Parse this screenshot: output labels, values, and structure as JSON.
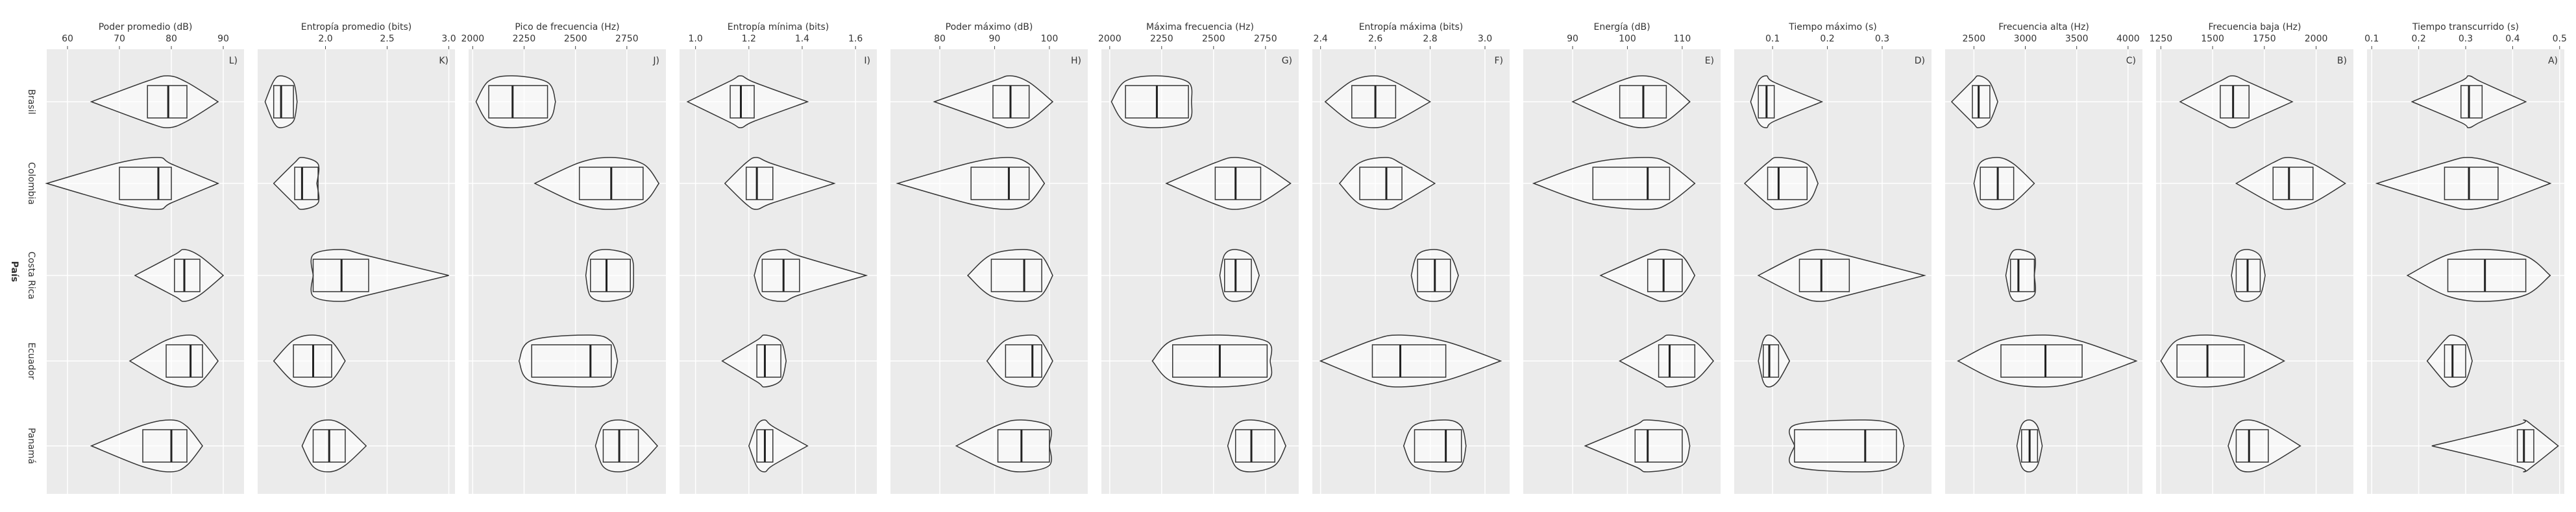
{
  "chart_data": [
    {
      "type": "violin",
      "title": "Poder promedio (dB)",
      "tag": "L)",
      "ylabel": "País",
      "categories": [
        "Brasil",
        "Colombia",
        "Costa Rica",
        "Ecuador",
        "Panamá"
      ],
      "xlim": [
        56,
        94
      ],
      "xticks": [
        60,
        70,
        80,
        90
      ],
      "min": [
        64.6,
        56,
        73,
        72,
        64.6
      ],
      "q1": [
        75.4,
        70,
        80.6,
        79,
        74.5
      ],
      "median": [
        79.4,
        77.5,
        82.5,
        83.7,
        80
      ],
      "q3": [
        83,
        80,
        85.5,
        86,
        83
      ],
      "max": [
        89,
        89,
        90,
        89,
        86
      ]
    },
    {
      "type": "violin",
      "title": "Entropía promedio (bits)",
      "tag": "K)",
      "xlim": [
        1.45,
        3.05
      ],
      "xticks": [
        {
          "value": 2,
          "label": "2.0"
        },
        2.5,
        {
          "value": 3,
          "label": "3.0"
        }
      ],
      "min": [
        1.51,
        1.58,
        1.9,
        1.58,
        1.81
      ],
      "q1": [
        1.58,
        1.75,
        1.9,
        1.74,
        1.9
      ],
      "median": [
        1.64,
        1.81,
        2.13,
        1.9,
        2.03
      ],
      "q3": [
        1.74,
        1.94,
        2.35,
        2.05,
        2.16
      ],
      "max": [
        1.77,
        1.93,
        3.0,
        2.16,
        2.33
      ]
    },
    {
      "type": "violin",
      "title": "Pico de frecuencia (Hz)",
      "tag": "J)",
      "xlim": [
        1980,
        2940
      ],
      "xticks": [
        2000,
        2250,
        2500,
        2750
      ],
      "min": [
        2016,
        2302,
        2550,
        2225,
        2597
      ],
      "q1": [
        2078,
        2519,
        2573,
        2287,
        2635
      ],
      "median": [
        2194,
        2674,
        2651,
        2573,
        2713
      ],
      "q3": [
        2364,
        2829,
        2767,
        2674,
        2806
      ],
      "max": [
        2403,
        2906,
        2783,
        2705,
        2899
      ]
    },
    {
      "type": "violin",
      "title": "Entropía mínima (bits)",
      "tag": "I)",
      "xlim": [
        0.94,
        1.68
      ],
      "xticks": [
        {
          "value": 1,
          "label": "1.0"
        },
        1.2,
        1.4,
        1.6
      ],
      "min": [
        0.97,
        1.11,
        1.22,
        1.1,
        1.2
      ],
      "q1": [
        1.13,
        1.19,
        1.25,
        1.23,
        1.23
      ],
      "median": [
        1.17,
        1.23,
        1.33,
        1.26,
        1.26
      ],
      "q3": [
        1.22,
        1.29,
        1.39,
        1.32,
        1.29
      ],
      "max": [
        1.42,
        1.52,
        1.64,
        1.34,
        1.42
      ]
    },
    {
      "type": "violin",
      "title": "Poder máximo (dB)",
      "tag": "H)",
      "xlim": [
        71,
        107
      ],
      "xticks": [
        80,
        90,
        100
      ],
      "min": [
        79,
        72.3,
        85.1,
        88.6,
        83
      ],
      "q1": [
        89.7,
        85.7,
        89.4,
        92,
        90.6
      ],
      "median": [
        92.9,
        92.6,
        95.4,
        96.9,
        94.9
      ],
      "q3": [
        96.3,
        96.3,
        98.6,
        98.6,
        100
      ],
      "max": [
        100.6,
        99.1,
        100.6,
        100.6,
        100
      ]
    },
    {
      "type": "violin",
      "title": "Máxima frecuencia (Hz)",
      "tag": "G)",
      "xlim": [
        1960,
        2910
      ],
      "xticks": [
        2000,
        2250,
        2500,
        2750
      ],
      "min": [
        2008,
        2273,
        2530,
        2205,
        2568
      ],
      "q1": [
        2076,
        2508,
        2553,
        2303,
        2606
      ],
      "median": [
        2227,
        2606,
        2606,
        2530,
        2682
      ],
      "q3": [
        2379,
        2727,
        2682,
        2758,
        2795
      ],
      "max": [
        2394,
        2871,
        2720,
        2773,
        2848
      ]
    },
    {
      "type": "violin",
      "title": "Entropía máxima (bits)",
      "tag": "F)",
      "xlim": [
        2.37,
        3.09
      ],
      "xticks": [
        2.4,
        2.6,
        2.8,
        {
          "value": 3,
          "label": "3.0"
        }
      ],
      "min": [
        2.417,
        2.469,
        2.731,
        2.4,
        2.703
      ],
      "q1": [
        2.514,
        2.543,
        2.754,
        2.589,
        2.743
      ],
      "median": [
        2.6,
        2.64,
        2.817,
        2.691,
        2.857
      ],
      "q3": [
        2.674,
        2.697,
        2.874,
        2.857,
        2.914
      ],
      "max": [
        2.8,
        2.817,
        2.903,
        3.057,
        2.931
      ]
    },
    {
      "type": "violin",
      "title": "Energía (dB)",
      "tag": "E)",
      "xlim": [
        81,
        117
      ],
      "xticks": [
        90,
        100,
        110
      ],
      "min": [
        90,
        82.9,
        95.1,
        98.6,
        92.3
      ],
      "q1": [
        98.6,
        93.7,
        103.7,
        105.7,
        101.4
      ],
      "median": [
        102.9,
        103.7,
        106.6,
        107.7,
        103.7
      ],
      "q3": [
        107.1,
        107.7,
        110,
        112.3,
        110
      ],
      "max": [
        111.4,
        112.3,
        112.3,
        115.7,
        111.4
      ]
    },
    {
      "type": "violin",
      "title": "Tiempo máximo (s)",
      "tag": "D)",
      "xlim": [
        0.03,
        0.39
      ],
      "xticks": [
        0.1,
        0.2,
        0.3
      ],
      "min": [
        0.06,
        0.049,
        0.074,
        0.074,
        0.14
      ],
      "q1": [
        0.074,
        0.091,
        0.149,
        0.083,
        0.14
      ],
      "median": [
        0.089,
        0.111,
        0.189,
        0.094,
        0.269
      ],
      "q3": [
        0.103,
        0.163,
        0.24,
        0.111,
        0.326
      ],
      "max": [
        0.19,
        0.183,
        0.377,
        0.131,
        0.34
      ]
    },
    {
      "type": "violin",
      "title": "Frecuencia alta (Hz)",
      "tag": "C)",
      "xlim": [
        2220,
        4140
      ],
      "xticks": [
        2500,
        3000,
        3500,
        4000
      ],
      "min": [
        2283,
        2500,
        2810,
        2345,
        2918
      ],
      "q1": [
        2485,
        2562,
        2856,
        2763,
        2964
      ],
      "median": [
        2546,
        2732,
        2933,
        3196,
        3042
      ],
      "q3": [
        2655,
        2887,
        3088,
        3553,
        3119
      ],
      "max": [
        2732,
        3088,
        3088,
        4080,
        3165
      ]
    },
    {
      "type": "violin",
      "title": "Frecuencia baja (Hz)",
      "tag": "B)",
      "xlim": [
        1227,
        2180
      ],
      "xticks": [
        1250,
        1500,
        1750,
        2000
      ],
      "min": [
        1343,
        1614,
        1591,
        1250,
        1575
      ],
      "q1": [
        1537,
        1792,
        1614,
        1328,
        1614
      ],
      "median": [
        1599,
        1869,
        1669,
        1475,
        1676
      ],
      "q3": [
        1676,
        1985,
        1730,
        1653,
        1769
      ],
      "max": [
        1885,
        2141,
        1754,
        1846,
        1924
      ]
    },
    {
      "type": "violin",
      "title": "Tiempo transcurrido (s)",
      "tag": "A)",
      "xlim": [
        0.09,
        0.51
      ],
      "xticks": [
        0.1,
        0.2,
        0.3,
        0.4,
        0.5
      ],
      "min": [
        0.186,
        0.111,
        0.176,
        0.218,
        0.228
      ],
      "q1": [
        0.29,
        0.255,
        0.262,
        0.255,
        0.41
      ],
      "median": [
        0.307,
        0.307,
        0.341,
        0.272,
        0.424
      ],
      "q3": [
        0.335,
        0.369,
        0.428,
        0.3,
        0.445
      ],
      "max": [
        0.428,
        0.48,
        0.48,
        0.314,
        0.497
      ]
    }
  ]
}
